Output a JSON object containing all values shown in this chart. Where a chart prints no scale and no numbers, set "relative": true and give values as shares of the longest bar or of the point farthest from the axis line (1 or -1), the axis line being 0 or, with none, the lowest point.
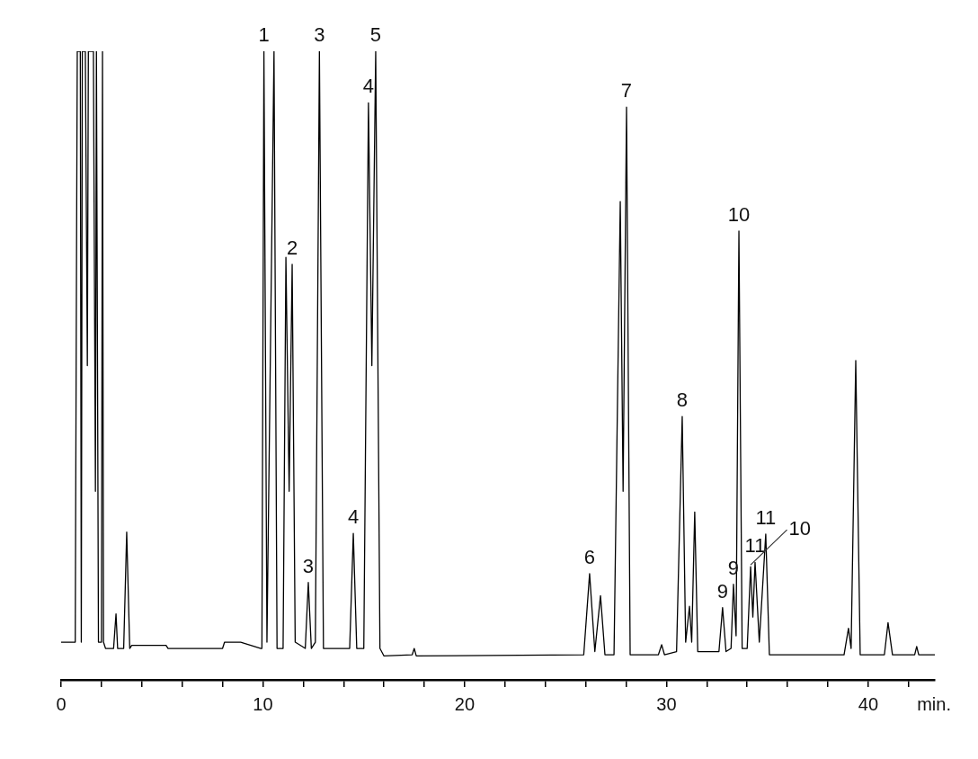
{
  "chart_data": {
    "type": "line",
    "relative": true,
    "xlabel": "min.",
    "xlim": [
      0,
      43.3
    ],
    "xticks": [
      0,
      {
        "value": 2,
        "label": null
      },
      {
        "value": 4,
        "label": null
      },
      {
        "value": 6,
        "label": null
      },
      {
        "value": 8,
        "label": null
      },
      10,
      {
        "value": 12,
        "label": null
      },
      {
        "value": 14,
        "label": null
      },
      {
        "value": 16,
        "label": null
      },
      {
        "value": 18,
        "label": null
      },
      20,
      {
        "value": 22,
        "label": null
      },
      {
        "value": 24,
        "label": null
      },
      {
        "value": 26,
        "label": null
      },
      {
        "value": 28,
        "label": null
      },
      30,
      {
        "value": 32,
        "label": null
      },
      {
        "value": 34,
        "label": null
      },
      {
        "value": 36,
        "label": null
      },
      {
        "value": 38,
        "label": null
      },
      40,
      {
        "value": 42,
        "label": null
      }
    ],
    "tick_labels": "x",
    "grid": false,
    "legend": false,
    "marker": "none",
    "line_style": "solid",
    "series": [
      {
        "color": "#000000",
        "x": [
          0,
          0.7,
          0.75,
          0.8,
          0.85,
          0.95,
          1.0,
          1.05,
          1.2,
          1.3,
          1.35,
          1.5,
          1.6,
          1.7,
          1.75,
          1.85,
          2.0,
          2.05,
          2.1,
          2.2,
          2.6,
          2.72,
          2.8,
          3.1,
          3.25,
          3.4,
          3.5,
          5.2,
          5.3,
          8.0,
          8.1,
          8.9,
          9.9,
          9.95,
          10.05,
          10.2,
          10.55,
          10.7,
          11.0,
          11.14,
          11.3,
          11.45,
          11.6,
          12.1,
          12.25,
          12.4,
          12.6,
          12.8,
          13.0,
          14.3,
          14.48,
          14.65,
          15.0,
          15.23,
          15.4,
          15.59,
          15.8,
          16.0,
          17.4,
          17.5,
          17.6,
          25.9,
          26.19,
          26.45,
          26.73,
          26.95,
          27.4,
          27.71,
          27.85,
          28.02,
          28.2,
          29.6,
          29.76,
          29.9,
          30.5,
          30.78,
          30.95,
          31.14,
          31.25,
          31.4,
          31.55,
          32.6,
          32.78,
          32.95,
          33.2,
          33.32,
          33.45,
          33.59,
          33.75,
          34.0,
          34.17,
          34.28,
          34.39,
          34.6,
          34.92,
          35.1,
          38.8,
          39.02,
          39.15,
          39.38,
          39.6,
          40.8,
          40.98,
          41.2,
          42.3,
          42.4,
          42.5,
          43.3
        ],
        "values": [
          0.06,
          0.06,
          0.55,
          1.0,
          1.0,
          1.0,
          0.06,
          1.0,
          1.0,
          0.5,
          1.0,
          1.0,
          1.0,
          0.3,
          1.0,
          0.06,
          0.06,
          1.0,
          0.06,
          0.05,
          0.05,
          0.105,
          0.05,
          0.05,
          0.235,
          0.05,
          0.055,
          0.055,
          0.05,
          0.05,
          0.06,
          0.06,
          0.05,
          0.05,
          1.0,
          0.06,
          1.0,
          0.05,
          0.05,
          0.672,
          0.3,
          0.661,
          0.06,
          0.05,
          0.155,
          0.05,
          0.06,
          1.0,
          0.05,
          0.05,
          0.233,
          0.05,
          0.05,
          0.918,
          0.5,
          1.0,
          0.05,
          0.038,
          0.04,
          0.05,
          0.038,
          0.04,
          0.169,
          0.045,
          0.134,
          0.04,
          0.04,
          0.761,
          0.3,
          0.911,
          0.04,
          0.04,
          0.056,
          0.04,
          0.045,
          0.419,
          0.06,
          0.117,
          0.06,
          0.267,
          0.045,
          0.045,
          0.115,
          0.045,
          0.05,
          0.152,
          0.07,
          0.714,
          0.05,
          0.05,
          0.18,
          0.1,
          0.187,
          0.06,
          0.232,
          0.04,
          0.04,
          0.082,
          0.05,
          0.508,
          0.04,
          0.04,
          0.091,
          0.04,
          0.04,
          0.053,
          0.04,
          0.04
        ]
      }
    ],
    "annotations": [
      {
        "text": "1",
        "x": 10.05,
        "y": 1.0
      },
      {
        "text": "2",
        "x": 11.45,
        "y": 0.661
      },
      {
        "text": "3",
        "x": 12.8,
        "y": 1.0
      },
      {
        "text": "3",
        "x": 12.25,
        "y": 0.155
      },
      {
        "text": "4",
        "x": 14.48,
        "y": 0.233
      },
      {
        "text": "4",
        "x": 15.23,
        "y": 0.918
      },
      {
        "text": "5",
        "x": 15.59,
        "y": 1.0
      },
      {
        "text": "6",
        "x": 26.19,
        "y": 0.169
      },
      {
        "text": "7",
        "x": 28.02,
        "y": 0.911
      },
      {
        "text": "8",
        "x": 30.78,
        "y": 0.419
      },
      {
        "text": "9",
        "x": 32.78,
        "y": 0.115
      },
      {
        "text": "9",
        "x": 33.32,
        "y": 0.152
      },
      {
        "text": "10",
        "x": 33.59,
        "y": 0.714
      },
      {
        "text": "11",
        "x": 34.92,
        "y": 0.232
      },
      {
        "text": "11",
        "x": 34.39,
        "y": 0.187
      },
      {
        "text": "10",
        "x": 34.17,
        "y": 0.18
      }
    ]
  }
}
